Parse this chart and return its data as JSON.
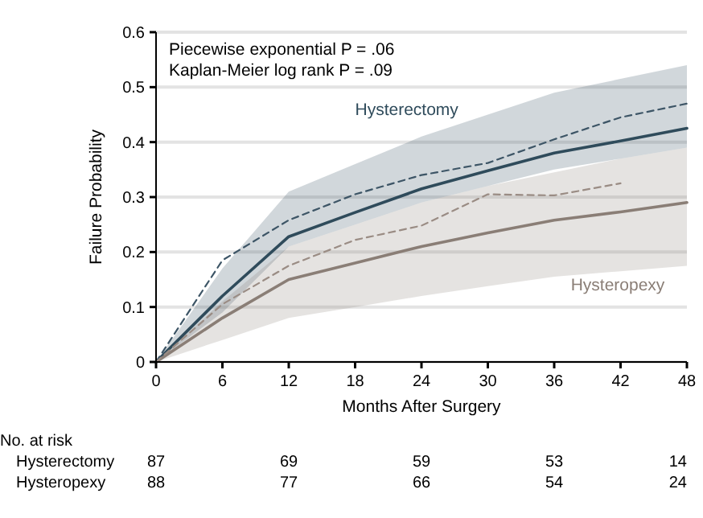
{
  "chart_data": {
    "type": "line",
    "xlabel": "Months After Surgery",
    "ylabel": "Failure Probability",
    "x": [
      0,
      6,
      12,
      18,
      24,
      30,
      36,
      42,
      48
    ],
    "series": [
      {
        "name": "Hysterectomy",
        "color": "#2f4b5b",
        "values": [
          0,
          0.12,
          0.228,
          0.272,
          0.315,
          0.348,
          0.38,
          0.402,
          0.425
        ],
        "lower": [
          0,
          0.09,
          0.21,
          0.25,
          0.29,
          0.32,
          0.35,
          0.37,
          0.39
        ],
        "upper": [
          0,
          0.17,
          0.31,
          0.36,
          0.41,
          0.45,
          0.49,
          0.515,
          0.54
        ]
      },
      {
        "name": "Hysteropexy",
        "color": "#8a7e76",
        "values": [
          0,
          0.08,
          0.15,
          0.18,
          0.21,
          0.235,
          0.258,
          0.273,
          0.29
        ],
        "lower": [
          0,
          0.04,
          0.08,
          0.1,
          0.12,
          0.138,
          0.155,
          0.165,
          0.175
        ],
        "upper": [
          0,
          0.11,
          0.21,
          0.25,
          0.29,
          0.32,
          0.345,
          0.37,
          0.39
        ]
      },
      {
        "color": "#3d5566",
        "line_style": "dashed",
        "values": [
          0,
          0.185,
          0.258,
          0.305,
          0.34,
          0.362,
          0.405,
          0.445,
          0.47
        ]
      },
      {
        "color": "#9a8c84",
        "line_style": "dashed",
        "values": [
          0,
          0.105,
          0.175,
          0.222,
          0.248,
          0.305,
          0.303,
          0.325,
          null
        ]
      }
    ],
    "xlim": [
      0,
      48
    ],
    "xticks": [
      0,
      6,
      12,
      18,
      24,
      30,
      36,
      42,
      48
    ],
    "ylim": [
      0,
      0.6
    ],
    "yticks": [
      0,
      0.1,
      0.2,
      0.3,
      0.4,
      0.5,
      0.6
    ],
    "grid": "y",
    "legend": false,
    "marker": "none",
    "line_style": "solid",
    "annotations": [
      "Piecewise exponential P = .06",
      "Kaplan-Meier log rank P = .09",
      "No. at risk",
      "Hysterectomy 87 69 59 53 14",
      "Hysteropexy 88 77 66 54 24"
    ]
  }
}
